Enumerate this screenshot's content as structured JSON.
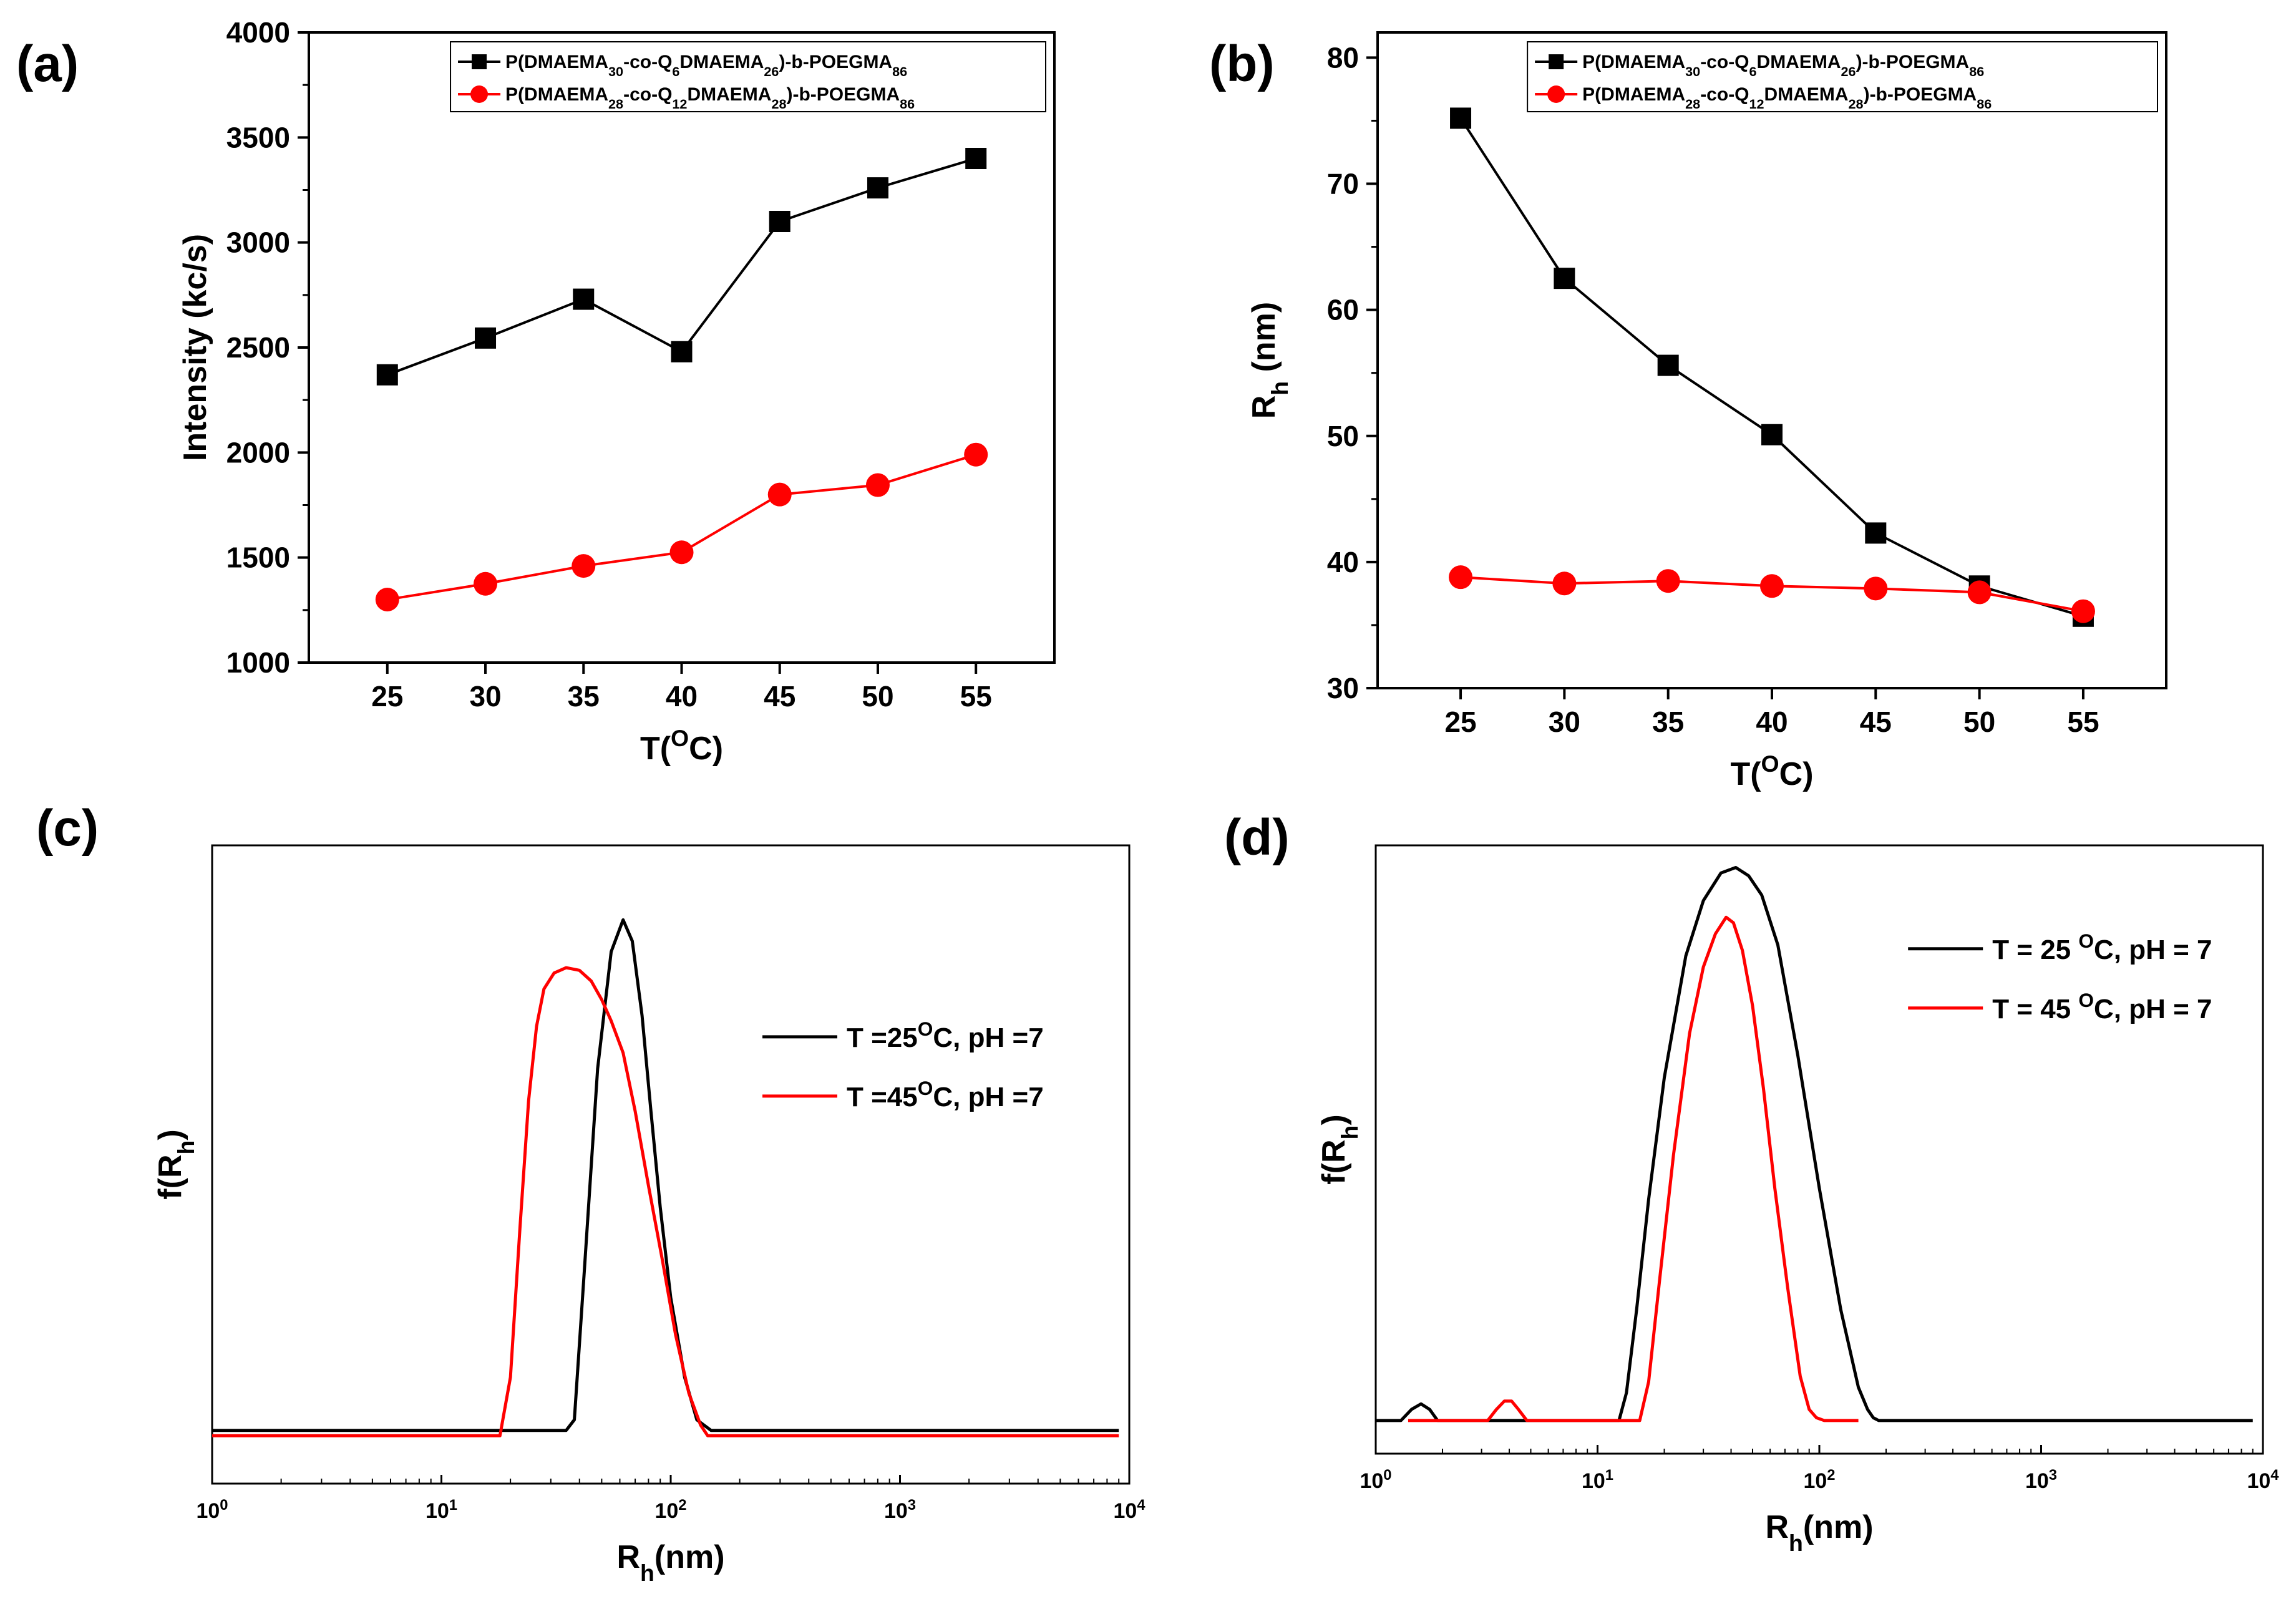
{
  "colors": {
    "black_series": "#000000",
    "red_series": "#ff0000"
  },
  "chart_data": [
    {
      "panel": "(a)",
      "type": "line",
      "xlabel": {
        "main": "T(",
        "sup": "O",
        "tail": "C)"
      },
      "ylabel": "Intensity (kc/s)",
      "x": [
        25,
        30,
        35,
        40,
        45,
        50,
        55
      ],
      "xticks": [
        "25",
        "30",
        "35",
        "40",
        "45",
        "50",
        "55"
      ],
      "yticks": [
        "1000",
        "1500",
        "2000",
        "2500",
        "3000",
        "3500",
        "4000"
      ],
      "xlim": [
        21,
        59
      ],
      "ylim": [
        1000,
        4000
      ],
      "legend_position": "top-right",
      "series": [
        {
          "name": "P(DMAEMA30-co-Q6DMAEMA26)-b-POEGMA86",
          "label_parts": [
            [
              "P(DMAEMA",
              ""
            ],
            [
              "30",
              "sub"
            ],
            [
              "-co-Q",
              ""
            ],
            [
              "6",
              "sub"
            ],
            [
              "DMAEMA",
              ""
            ],
            [
              "26",
              "sub"
            ],
            [
              ")-b-POEGMA",
              ""
            ],
            [
              "86",
              "sub"
            ]
          ],
          "color": "#000000",
          "marker": "square",
          "values": [
            2370,
            2545,
            2730,
            2480,
            3100,
            3260,
            3400
          ]
        },
        {
          "name": "P(DMAEMA28-co-Q12DMAEMA28)-b-POEGMA86",
          "label_parts": [
            [
              "P(DMAEMA",
              ""
            ],
            [
              "28",
              "sub"
            ],
            [
              "-co-Q",
              ""
            ],
            [
              "12",
              "sub"
            ],
            [
              "DMAEMA",
              ""
            ],
            [
              "28",
              "sub"
            ],
            [
              ")-b-POEGMA",
              ""
            ],
            [
              "86",
              "sub"
            ]
          ],
          "color": "#ff0000",
          "marker": "circle",
          "values": [
            1300,
            1375,
            1460,
            1525,
            1800,
            1845,
            1990
          ]
        }
      ]
    },
    {
      "panel": "(b)",
      "type": "line",
      "xlabel": {
        "main": "T(",
        "sup": "O",
        "tail": "C)"
      },
      "ylabel": {
        "main": "R",
        "sub": "h",
        "tail": " (nm)"
      },
      "x": [
        25,
        30,
        35,
        40,
        45,
        50,
        55
      ],
      "xticks": [
        "25",
        "30",
        "35",
        "40",
        "45",
        "50",
        "55"
      ],
      "yticks": [
        "30",
        "40",
        "50",
        "60",
        "70",
        "80"
      ],
      "xlim": [
        21,
        59
      ],
      "ylim": [
        30,
        82
      ],
      "legend_position": "top-right",
      "series": [
        {
          "name": "P(DMAEMA30-co-Q6DMAEMA26)-b-POEGMA86",
          "label_parts": [
            [
              "P(DMAEMA",
              ""
            ],
            [
              "30",
              "sub"
            ],
            [
              "-co-Q",
              ""
            ],
            [
              "6",
              "sub"
            ],
            [
              "DMAEMA",
              ""
            ],
            [
              "26",
              "sub"
            ],
            [
              ")-b-POEGMA",
              ""
            ],
            [
              "86",
              "sub"
            ]
          ],
          "color": "#000000",
          "marker": "square",
          "values": [
            75.2,
            62.5,
            55.6,
            50.1,
            42.3,
            38.1,
            35.7
          ]
        },
        {
          "name": "P(DMAEMA28-co-Q12DMAEMA28)-b-POEGMA86",
          "label_parts": [
            [
              "P(DMAEMA",
              ""
            ],
            [
              "28",
              "sub"
            ],
            [
              "-co-Q",
              ""
            ],
            [
              "12",
              "sub"
            ],
            [
              "DMAEMA",
              ""
            ],
            [
              "28",
              "sub"
            ],
            [
              ")-b-POEGMA",
              ""
            ],
            [
              "86",
              "sub"
            ]
          ],
          "color": "#ff0000",
          "marker": "circle",
          "values": [
            38.8,
            38.3,
            38.5,
            38.1,
            37.9,
            37.6,
            36.1
          ]
        }
      ]
    },
    {
      "panel": "(c)",
      "type": "line",
      "xscale": "log",
      "xlabel": {
        "main": "R",
        "sub": "h",
        "tail": "(nm)"
      },
      "ylabel": {
        "main": "f(R",
        "sub": "h",
        "tail": ")"
      },
      "xticks": [
        {
          "base": "10",
          "exp": "0"
        },
        {
          "base": "10",
          "exp": "1"
        },
        {
          "base": "10",
          "exp": "2"
        },
        {
          "base": "10",
          "exp": "3"
        },
        {
          "base": "10",
          "exp": "4"
        }
      ],
      "xlim": [
        1,
        10000
      ],
      "ylim": [
        -0.1,
        1.1
      ],
      "legend_position": "center-right",
      "series": [
        {
          "name": "T =25OC, pH =7",
          "label_parts": [
            [
              "T =25",
              ""
            ],
            [
              "O",
              "sup"
            ],
            [
              "C, pH =7",
              ""
            ]
          ],
          "color": "#000000",
          "x": [
            1,
            35,
            38,
            42,
            48,
            55,
            62,
            68,
            75,
            82,
            90,
            100,
            115,
            130,
            150,
            9000
          ],
          "y": [
            0,
            0,
            0.02,
            0.3,
            0.68,
            0.9,
            0.96,
            0.92,
            0.78,
            0.6,
            0.42,
            0.25,
            0.1,
            0.02,
            0,
            0
          ]
        },
        {
          "name": "T =45OC, pH =7",
          "label_parts": [
            [
              "T =45",
              ""
            ],
            [
              "O",
              "sup"
            ],
            [
              "C, pH =7",
              ""
            ]
          ],
          "color": "#ff0000",
          "x": [
            1,
            18,
            20,
            22,
            24,
            26,
            28,
            31,
            35,
            40,
            45,
            50,
            55,
            62,
            70,
            80,
            92,
            105,
            120,
            135,
            145,
            9000
          ],
          "y": [
            -0.01,
            -0.01,
            0.1,
            0.38,
            0.62,
            0.76,
            0.83,
            0.86,
            0.87,
            0.865,
            0.845,
            0.81,
            0.77,
            0.71,
            0.6,
            0.46,
            0.32,
            0.18,
            0.07,
            0.01,
            -0.01,
            -0.01
          ]
        }
      ]
    },
    {
      "panel": "(d)",
      "type": "line",
      "xscale": "log",
      "xlabel": {
        "main": "R",
        "sub": "h",
        "tail": "(nm)"
      },
      "ylabel": {
        "main": "f(R",
        "sub": "h",
        "tail": ")"
      },
      "xticks": [
        {
          "base": "10",
          "exp": "0"
        },
        {
          "base": "10",
          "exp": "1"
        },
        {
          "base": "10",
          "exp": "2"
        },
        {
          "base": "10",
          "exp": "3"
        },
        {
          "base": "10",
          "exp": "4"
        }
      ],
      "xlim": [
        1,
        10000
      ],
      "ylim": [
        -0.06,
        1.04
      ],
      "legend_position": "top-right",
      "series": [
        {
          "name": "T = 25 OC, pH = 7",
          "label_parts": [
            [
              "T = 25 ",
              ""
            ],
            [
              "O",
              "sup"
            ],
            [
              "C, pH = 7",
              ""
            ]
          ],
          "color": "#000000",
          "x": [
            1,
            1.3,
            1.45,
            1.6,
            1.75,
            1.9,
            12.5,
            13.5,
            15,
            17,
            20,
            25,
            30,
            36,
            42,
            48,
            55,
            65,
            80,
            100,
            125,
            150,
            165,
            175,
            185,
            9000
          ],
          "y": [
            0,
            0,
            0.02,
            0.03,
            0.02,
            0,
            0,
            0.05,
            0.2,
            0.4,
            0.62,
            0.84,
            0.94,
            0.99,
            1.0,
            0.985,
            0.95,
            0.86,
            0.66,
            0.42,
            0.2,
            0.06,
            0.02,
            0.005,
            0,
            0
          ]
        },
        {
          "name": "T = 45 OC, pH = 7",
          "label_parts": [
            [
              "T = 45 ",
              ""
            ],
            [
              "O",
              "sup"
            ],
            [
              "C, pH = 7",
              ""
            ]
          ],
          "color": "#ff0000",
          "x": [
            1.4,
            3.2,
            3.5,
            3.8,
            4.1,
            4.4,
            4.8,
            15.5,
            17,
            19,
            22,
            26,
            30,
            34,
            38,
            41,
            45,
            50,
            56,
            63,
            72,
            82,
            90,
            97,
            105,
            150
          ],
          "y": [
            0,
            0,
            0.02,
            0.035,
            0.035,
            0.02,
            0,
            0,
            0.07,
            0.25,
            0.48,
            0.7,
            0.82,
            0.88,
            0.91,
            0.9,
            0.85,
            0.75,
            0.6,
            0.42,
            0.24,
            0.08,
            0.02,
            0.005,
            0,
            0
          ]
        }
      ]
    }
  ]
}
